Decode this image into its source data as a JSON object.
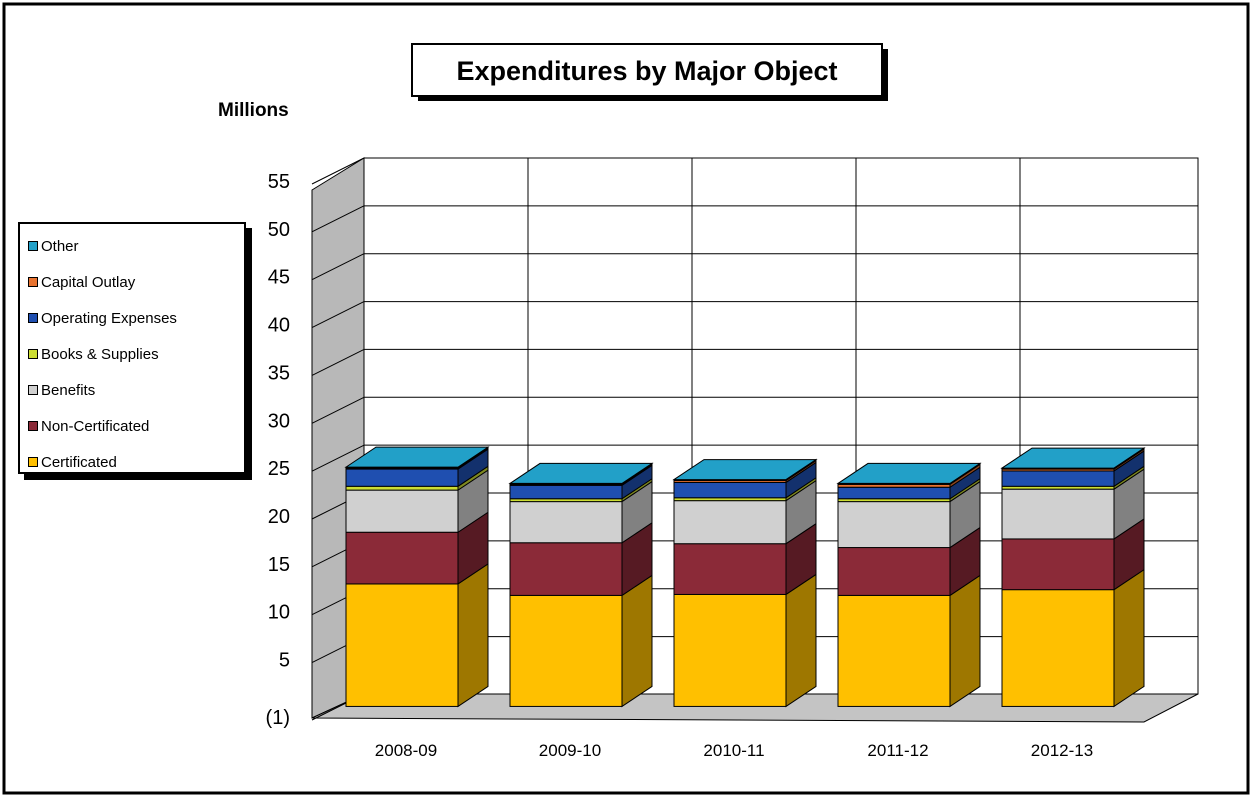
{
  "chart_data": {
    "type": "bar",
    "stacked": true,
    "three_d": true,
    "title": "Expenditures by Major Object",
    "ylabel": "Millions",
    "xlabel": "",
    "ylim": [
      -1,
      55
    ],
    "y_ticks": [
      -1,
      5,
      10,
      15,
      20,
      25,
      30,
      35,
      40,
      45,
      50,
      55
    ],
    "y_tick_labels": [
      "(1)",
      "5",
      "10",
      "15",
      "20",
      "25",
      "30",
      "35",
      "40",
      "45",
      "50",
      "55"
    ],
    "grid": true,
    "legend_position": "left",
    "categories": [
      "2008-09",
      "2009-10",
      "2010-11",
      "2011-12",
      "2012-13"
    ],
    "series": [
      {
        "name": "Certificated",
        "color": "#FFC000",
        "values": [
          12.8,
          11.6,
          11.7,
          11.6,
          12.2
        ]
      },
      {
        "name": "Non-Certificated",
        "color": "#8B2A38",
        "values": [
          5.4,
          5.5,
          5.3,
          5.0,
          5.3
        ]
      },
      {
        "name": "Benefits",
        "color": "#D0D0D0",
        "values": [
          4.4,
          4.3,
          4.5,
          4.8,
          5.2
        ]
      },
      {
        "name": "Books & Supplies",
        "color": "#CCDD33",
        "values": [
          0.4,
          0.3,
          0.3,
          0.3,
          0.3
        ]
      },
      {
        "name": "Operating Expenses",
        "color": "#1F4FB0",
        "values": [
          1.8,
          1.4,
          1.6,
          1.2,
          1.6
        ]
      },
      {
        "name": "Capital Outlay",
        "color": "#E87330",
        "values": [
          0.1,
          0.1,
          0.2,
          0.3,
          0.2
        ]
      },
      {
        "name": "Other",
        "color": "#22A0C8",
        "values": [
          0.1,
          0.1,
          0.1,
          0.1,
          0.1
        ]
      }
    ],
    "legend_order": [
      "Other",
      "Capital Outlay",
      "Operating Expenses",
      "Books & Supplies",
      "Benefits",
      "Non-Certificated",
      "Certificated"
    ]
  }
}
